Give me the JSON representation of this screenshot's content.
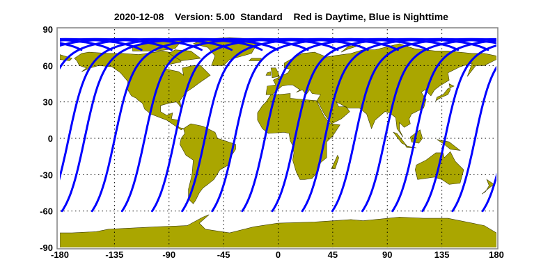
{
  "title": {
    "date": "2020-12-08",
    "version": "Version: 5.00",
    "product": "Standard",
    "legend_text": "Red is Daytime, Blue is Nighttime"
  },
  "chart_data": {
    "type": "map",
    "projection": "equirectangular",
    "xlim": [
      -180,
      180
    ],
    "ylim": [
      -90,
      90
    ],
    "x_ticks": [
      "-180",
      "-135",
      "-90",
      "-45",
      "0",
      "45",
      "90",
      "135",
      "180"
    ],
    "y_ticks": [
      "90",
      "60",
      "30",
      "0",
      "-30",
      "-60",
      "-90"
    ],
    "grid": true,
    "grid_style": "dotted",
    "land_color": "#aaa600",
    "track_color_night": "#0000ff",
    "track_color_day": "#ff0000",
    "tracks": {
      "segment": "nighttime",
      "southern_end_latitude": -60,
      "max_latitude": 81.8,
      "southern_end_longitudes": [
        -178.2,
        -153.4,
        -128.7,
        -103.9,
        -79.1,
        -54.4,
        -29.6,
        -4.8,
        19.9,
        44.7,
        69.5,
        94.3,
        119.0,
        143.8,
        168.6
      ]
    }
  }
}
